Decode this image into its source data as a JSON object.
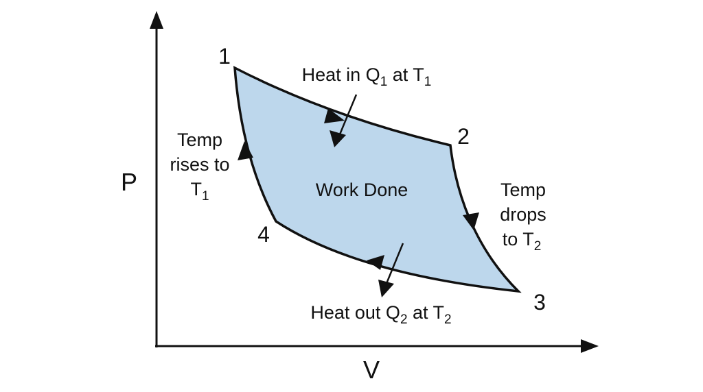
{
  "axes": {
    "y_label": "P",
    "x_label": "V"
  },
  "points": {
    "p1": "1",
    "p2": "2",
    "p3": "3",
    "p4": "4"
  },
  "annotations": {
    "heat_in": {
      "text": "Heat in Q",
      "sub1": "1",
      "mid": " at T",
      "sub2": "1"
    },
    "heat_out": {
      "text": "Heat out Q",
      "sub1": "2",
      "mid": " at T",
      "sub2": "2"
    },
    "temp_rises": {
      "line1": "Temp",
      "line2": "rises to",
      "line3": "T",
      "sub": "1"
    },
    "temp_drops": {
      "line1": "Temp",
      "line2": "drops",
      "line3": "to T",
      "sub": "2"
    },
    "work_done": "Work Done"
  },
  "colors": {
    "fill": "#bdd7ec",
    "stroke": "#111111"
  }
}
